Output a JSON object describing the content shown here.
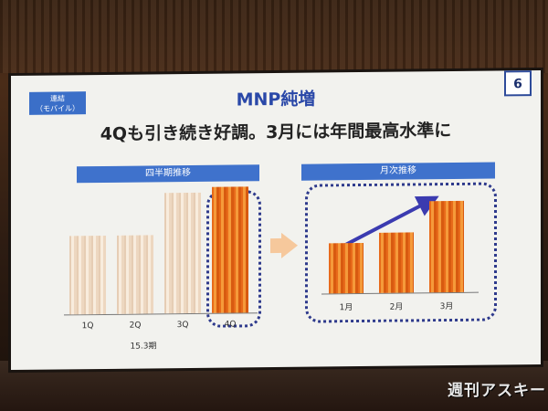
{
  "slide": {
    "badge_lines": [
      "連結",
      "（モバイル）"
    ],
    "page_number": "6",
    "title": "MNP純増",
    "subtitle": "4Qも引き続き好調。3月には年間最高水準に",
    "left_chart": {
      "label": "四半期推移",
      "period_label": "15.3期"
    },
    "right_chart": {
      "label": "月次推移"
    }
  },
  "chart_data": [
    {
      "type": "bar",
      "title": "四半期推移",
      "categories": [
        "1Q",
        "2Q",
        "3Q",
        "4Q"
      ],
      "values": [
        0.62,
        0.62,
        0.96,
        1.0
      ],
      "highlight": "4Q",
      "xlabel": "15.3期",
      "ylabel": "",
      "grid": false,
      "colors": {
        "normal": "#f4e2cf",
        "highlight": "#ee7a22"
      }
    },
    {
      "type": "bar",
      "title": "月次推移",
      "categories": [
        "1月",
        "2月",
        "3月"
      ],
      "values": [
        0.55,
        0.66,
        1.0
      ],
      "trend_arrow": true,
      "grid": false,
      "colors": {
        "bar": "#ee7a22",
        "arrow": "#3b3bb0"
      }
    }
  ],
  "watermark": "週刊アスキー"
}
